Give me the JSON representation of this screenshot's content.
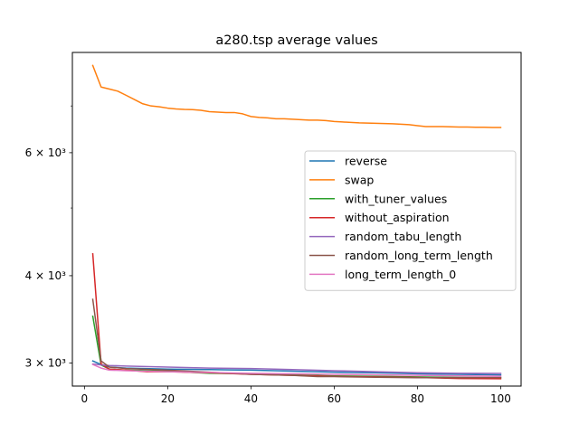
{
  "chart_data": {
    "type": "line",
    "title": "a280.tsp average values",
    "xlabel": "",
    "ylabel": "",
    "yscale": "log",
    "xlim": [
      -2.9,
      104.9
    ],
    "ylim": [
      2780,
      8350
    ],
    "x_ticks": [
      0,
      20,
      40,
      60,
      80,
      100
    ],
    "y_ticks": [
      {
        "value": 3000,
        "label": "3 × 10³"
      },
      {
        "value": 4000,
        "label": "4 × 10³"
      },
      {
        "value": 6000,
        "label": "6 × 10³"
      }
    ],
    "y_minor_ticks": [
      5000,
      7000
    ],
    "legend_position": "center-right",
    "series": [
      {
        "name": "reverse",
        "color": "#1f77b4",
        "x": [
          2,
          4,
          6,
          10,
          20,
          30,
          40,
          50,
          60,
          70,
          80,
          90,
          100
        ],
        "y": [
          3020,
          2985,
          2960,
          2950,
          2940,
          2935,
          2930,
          2920,
          2910,
          2905,
          2895,
          2890,
          2885
        ]
      },
      {
        "name": "swap",
        "color": "#ff7f0e",
        "x": [
          2,
          4,
          6,
          8,
          10,
          12,
          14,
          16,
          18,
          20,
          22,
          24,
          26,
          28,
          30,
          32,
          34,
          36,
          38,
          40,
          42,
          44,
          46,
          48,
          50,
          52,
          54,
          56,
          58,
          60,
          62,
          64,
          66,
          68,
          70,
          72,
          74,
          76,
          78,
          80,
          82,
          84,
          86,
          88,
          90,
          92,
          94,
          96,
          98,
          100
        ],
        "y": [
          8000,
          7450,
          7400,
          7350,
          7250,
          7150,
          7050,
          7000,
          6980,
          6950,
          6930,
          6920,
          6915,
          6900,
          6870,
          6860,
          6850,
          6850,
          6820,
          6760,
          6740,
          6730,
          6710,
          6710,
          6700,
          6690,
          6680,
          6680,
          6670,
          6650,
          6640,
          6630,
          6620,
          6615,
          6610,
          6605,
          6600,
          6590,
          6580,
          6560,
          6540,
          6540,
          6540,
          6535,
          6530,
          6530,
          6525,
          6525,
          6520,
          6520
        ]
      },
      {
        "name": "with_tuner_values",
        "color": "#2ca02c",
        "x": [
          2,
          4,
          6,
          10,
          20,
          30,
          40,
          50,
          60,
          70,
          80,
          90,
          100
        ],
        "y": [
          3500,
          2980,
          2940,
          2930,
          2920,
          2900,
          2895,
          2885,
          2875,
          2870,
          2865,
          2860,
          2858
        ]
      },
      {
        "name": "without_aspiration",
        "color": "#d62728",
        "x": [
          2,
          4,
          6,
          10,
          15,
          20,
          30,
          40,
          50,
          60,
          70,
          80,
          90,
          100
        ],
        "y": [
          4300,
          2990,
          2940,
          2930,
          2915,
          2915,
          2905,
          2890,
          2880,
          2870,
          2865,
          2860,
          2850,
          2848
        ]
      },
      {
        "name": "random_tabu_length",
        "color": "#9467bd",
        "x": [
          2,
          4,
          6,
          10,
          20,
          30,
          40,
          50,
          60,
          70,
          80,
          90,
          100
        ],
        "y": [
          2990,
          2980,
          2975,
          2970,
          2960,
          2950,
          2945,
          2935,
          2925,
          2915,
          2905,
          2900,
          2898
        ]
      },
      {
        "name": "random_long_term_length",
        "color": "#8c564b",
        "x": [
          2,
          4,
          6,
          10,
          20,
          30,
          40,
          50,
          56,
          60,
          70,
          80,
          90,
          100
        ],
        "y": [
          3700,
          3020,
          2960,
          2945,
          2930,
          2910,
          2890,
          2880,
          2868,
          2868,
          2862,
          2858,
          2858,
          2860
        ]
      },
      {
        "name": "long_term_length_0",
        "color": "#e377c2",
        "x": [
          2,
          4,
          6,
          10,
          20,
          30,
          40,
          50,
          60,
          70,
          80,
          90,
          100
        ],
        "y": [
          2985,
          2950,
          2930,
          2925,
          2915,
          2908,
          2900,
          2895,
          2890,
          2885,
          2880,
          2875,
          2872
        ]
      }
    ]
  }
}
